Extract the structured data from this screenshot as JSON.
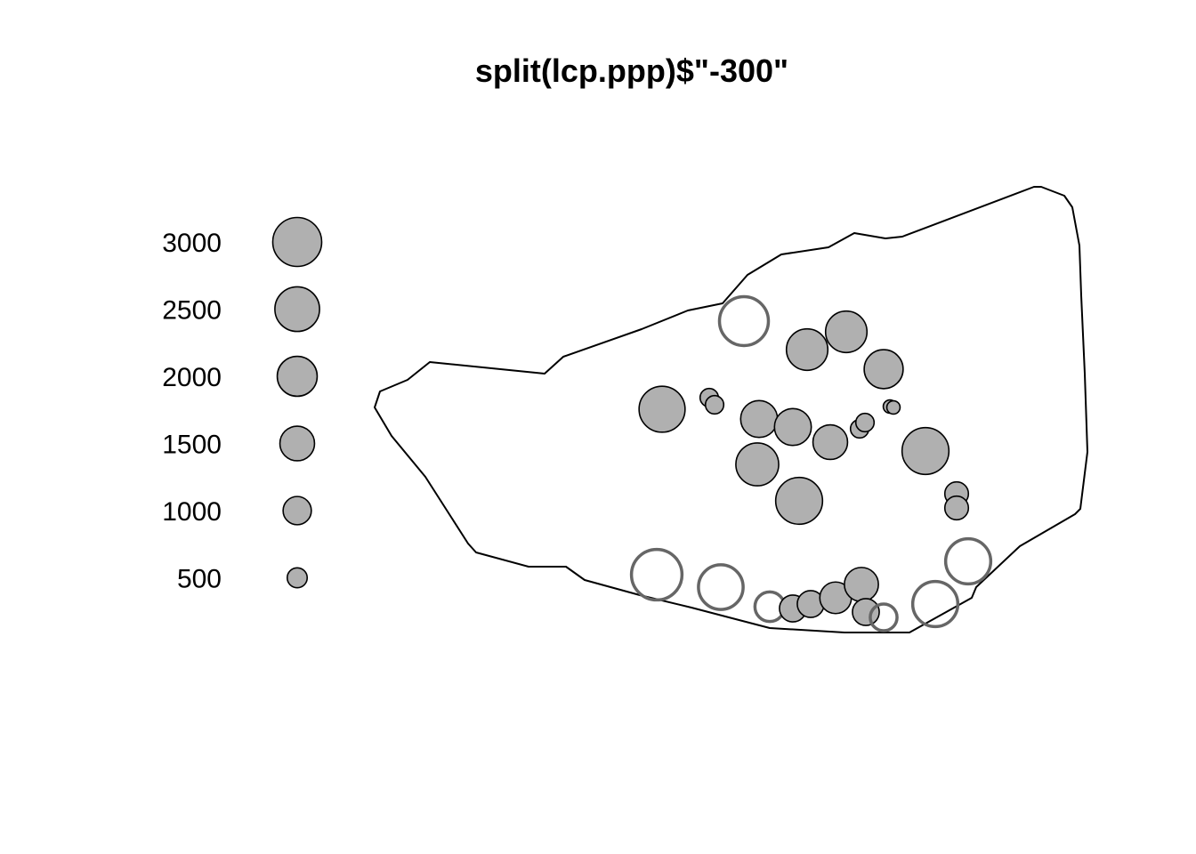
{
  "chart_data": {
    "type": "scatter",
    "subtype": "symbol-map (marked point pattern, circle area ~ mark value)",
    "title": "split(lcp.ppp)$\"-300\"",
    "xlabel": "",
    "ylabel": "",
    "axes": "none",
    "grid": false,
    "legend_placement": "left",
    "legend": {
      "values": [
        3000,
        2500,
        2000,
        1500,
        1000,
        500
      ]
    },
    "colors": {
      "filled_mark": "#b0b0b0",
      "open_mark": "#666666",
      "outline": "#000000",
      "background": "#ffffff"
    },
    "points": [
      {
        "x": 836,
        "y": 361,
        "mark": 3000,
        "style": "open"
      },
      {
        "x": 907,
        "y": 393,
        "mark": 2150,
        "style": "filled"
      },
      {
        "x": 951,
        "y": 373,
        "mark": 2150,
        "style": "filled"
      },
      {
        "x": 993,
        "y": 415,
        "mark": 1900,
        "style": "filled"
      },
      {
        "x": 744,
        "y": 460,
        "mark": 2650,
        "style": "filled"
      },
      {
        "x": 797,
        "y": 447,
        "mark": 420,
        "style": "filled"
      },
      {
        "x": 803,
        "y": 455,
        "mark": 420,
        "style": "filled"
      },
      {
        "x": 853,
        "y": 471,
        "mark": 1700,
        "style": "filled"
      },
      {
        "x": 891,
        "y": 480,
        "mark": 1700,
        "style": "filled"
      },
      {
        "x": 933,
        "y": 497,
        "mark": 1500,
        "style": "filled"
      },
      {
        "x": 851,
        "y": 522,
        "mark": 2300,
        "style": "filled"
      },
      {
        "x": 898,
        "y": 563,
        "mark": 2750,
        "style": "filled"
      },
      {
        "x": 966,
        "y": 482,
        "mark": 420,
        "style": "filled"
      },
      {
        "x": 972,
        "y": 475,
        "mark": 420,
        "style": "filled"
      },
      {
        "x": 1000,
        "y": 457,
        "mark": 220,
        "style": "filled"
      },
      {
        "x": 1004,
        "y": 458,
        "mark": 220,
        "style": "filled"
      },
      {
        "x": 1040,
        "y": 507,
        "mark": 2750,
        "style": "filled"
      },
      {
        "x": 1075,
        "y": 555,
        "mark": 700,
        "style": "filled"
      },
      {
        "x": 1075,
        "y": 571,
        "mark": 700,
        "style": "filled"
      },
      {
        "x": 738,
        "y": 646,
        "mark": 3200,
        "style": "open"
      },
      {
        "x": 810,
        "y": 660,
        "mark": 2500,
        "style": "open"
      },
      {
        "x": 865,
        "y": 682,
        "mark": 1100,
        "style": "open"
      },
      {
        "x": 891,
        "y": 684,
        "mark": 900,
        "style": "filled"
      },
      {
        "x": 911,
        "y": 679,
        "mark": 900,
        "style": "filled"
      },
      {
        "x": 939,
        "y": 672,
        "mark": 1250,
        "style": "filled"
      },
      {
        "x": 968,
        "y": 657,
        "mark": 1450,
        "style": "filled"
      },
      {
        "x": 973,
        "y": 688,
        "mark": 900,
        "style": "filled"
      },
      {
        "x": 993,
        "y": 694,
        "mark": 900,
        "style": "open"
      },
      {
        "x": 1051,
        "y": 679,
        "mark": 2550,
        "style": "open"
      },
      {
        "x": 1088,
        "y": 631,
        "mark": 2550,
        "style": "open"
      }
    ]
  }
}
